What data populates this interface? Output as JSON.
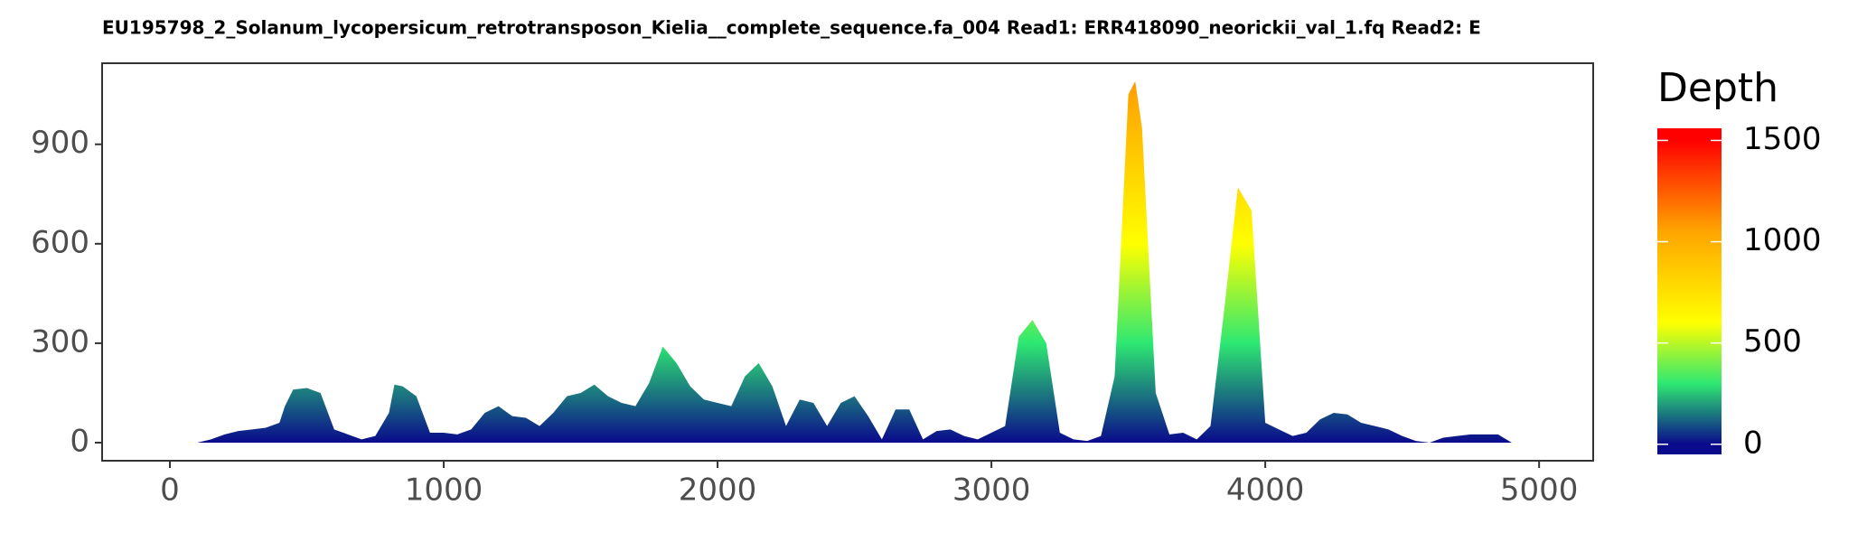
{
  "chart_data": {
    "type": "area",
    "title": "EU195798_2_Solanum_lycopersicum_retrotransposon_Kielia__complete_sequence.fa_004   Read1: ERR418090_neorickii_val_1.fq   Read2: E",
    "legend_title": "Depth",
    "x": [
      0,
      100,
      150,
      200,
      250,
      300,
      350,
      400,
      420,
      450,
      500,
      550,
      600,
      650,
      700,
      750,
      800,
      820,
      850,
      900,
      950,
      1000,
      1050,
      1100,
      1150,
      1200,
      1250,
      1300,
      1350,
      1400,
      1450,
      1500,
      1550,
      1600,
      1650,
      1700,
      1750,
      1800,
      1850,
      1900,
      1950,
      2000,
      2050,
      2100,
      2150,
      2200,
      2250,
      2300,
      2350,
      2400,
      2450,
      2500,
      2550,
      2600,
      2650,
      2700,
      2750,
      2800,
      2850,
      2900,
      2950,
      3000,
      3050,
      3100,
      3150,
      3200,
      3250,
      3300,
      3350,
      3400,
      3450,
      3500,
      3525,
      3550,
      3600,
      3650,
      3700,
      3750,
      3800,
      3850,
      3900,
      3950,
      4000,
      4050,
      4100,
      4150,
      4200,
      4250,
      4300,
      4350,
      4400,
      4450,
      4500,
      4550,
      4600,
      4650,
      4700,
      4750,
      4800,
      4850,
      4900,
      4950
    ],
    "values": [
      0,
      0,
      10,
      25,
      35,
      40,
      45,
      60,
      110,
      160,
      165,
      150,
      40,
      25,
      10,
      20,
      90,
      175,
      170,
      140,
      30,
      30,
      25,
      40,
      90,
      110,
      80,
      75,
      50,
      90,
      140,
      150,
      175,
      140,
      120,
      110,
      180,
      290,
      240,
      170,
      130,
      120,
      110,
      200,
      240,
      170,
      50,
      130,
      120,
      50,
      120,
      140,
      80,
      10,
      100,
      100,
      10,
      35,
      40,
      20,
      10,
      30,
      50,
      320,
      370,
      300,
      30,
      10,
      5,
      20,
      200,
      1050,
      1090,
      950,
      150,
      25,
      30,
      10,
      50,
      400,
      770,
      700,
      60,
      40,
      20,
      30,
      70,
      90,
      85,
      60,
      50,
      40,
      20,
      5,
      0,
      15,
      20,
      25,
      25,
      25,
      0,
      0
    ],
    "xlim": [
      -247.5,
      5197.5
    ],
    "xticks": [
      0,
      1000,
      2000,
      3000,
      4000,
      5000
    ],
    "ylim": [
      -54.5,
      1144.5
    ],
    "yticks": [
      0,
      300,
      600,
      900
    ],
    "clim": [
      -50,
      1560
    ],
    "colorbar_ticks": [
      0,
      500,
      1000,
      1500
    ],
    "colorscale": [
      {
        "value": 0,
        "color": "#0a0a8c"
      },
      {
        "value": 300,
        "color": "#2ee872"
      },
      {
        "value": 600,
        "color": "#ffff00"
      },
      {
        "value": 1050,
        "color": "#ffa500"
      },
      {
        "value": 1500,
        "color": "#ff0000"
      }
    ],
    "grid": false
  }
}
